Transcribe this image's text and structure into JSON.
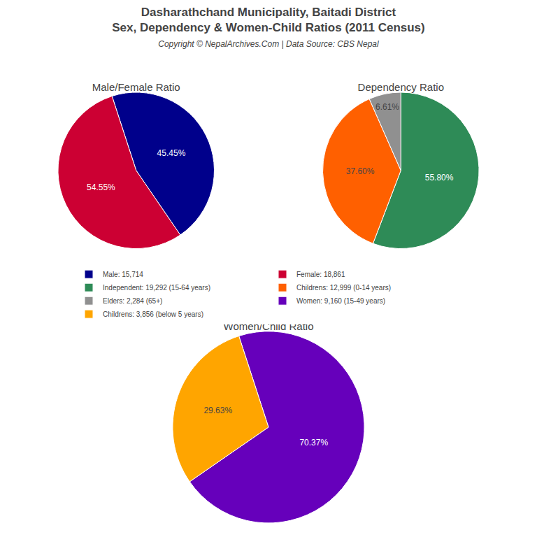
{
  "title": "Dasharathchand Municipality, Baitadi District",
  "subtitle": "Sex, Dependency & Women-Child Ratios (2011 Census)",
  "annotations": [
    "Copyright © NepalArchives.Com | Data Source: CBS Nepal"
  ],
  "legend": "center",
  "chart_data": [
    {
      "type": "pie",
      "title": "Male/Female Ratio",
      "categories": [
        "Male: 15,714",
        "Female: 18,861"
      ],
      "values": [
        45.45,
        54.55
      ],
      "value_labels": [
        "45.45%",
        "54.55%"
      ],
      "colors": [
        "#00008B",
        "#CC0033"
      ],
      "data_labels": true
    },
    {
      "type": "pie",
      "title": "Dependency Ratio",
      "categories": [
        "Independent: 19,292 (15-64 years)",
        "Childrens: 12,999 (0-14 years)",
        "Elders: 2,284 (65+)"
      ],
      "values": [
        55.8,
        37.6,
        6.61
      ],
      "value_labels": [
        "55.80%",
        "37.60%",
        "6.61%"
      ],
      "colors": [
        "#2E8B57",
        "#FF6000",
        "#909090"
      ],
      "data_labels": true
    },
    {
      "type": "pie",
      "title": "Women/Child Ratio",
      "categories": [
        "Women: 9,160 (15-49 years)",
        "Childrens: 3,856 (below 5 years)"
      ],
      "values": [
        70.37,
        29.63
      ],
      "value_labels": [
        "70.37%",
        "29.63%"
      ],
      "colors": [
        "#6600BB",
        "#FFA500"
      ],
      "data_labels": true
    }
  ]
}
